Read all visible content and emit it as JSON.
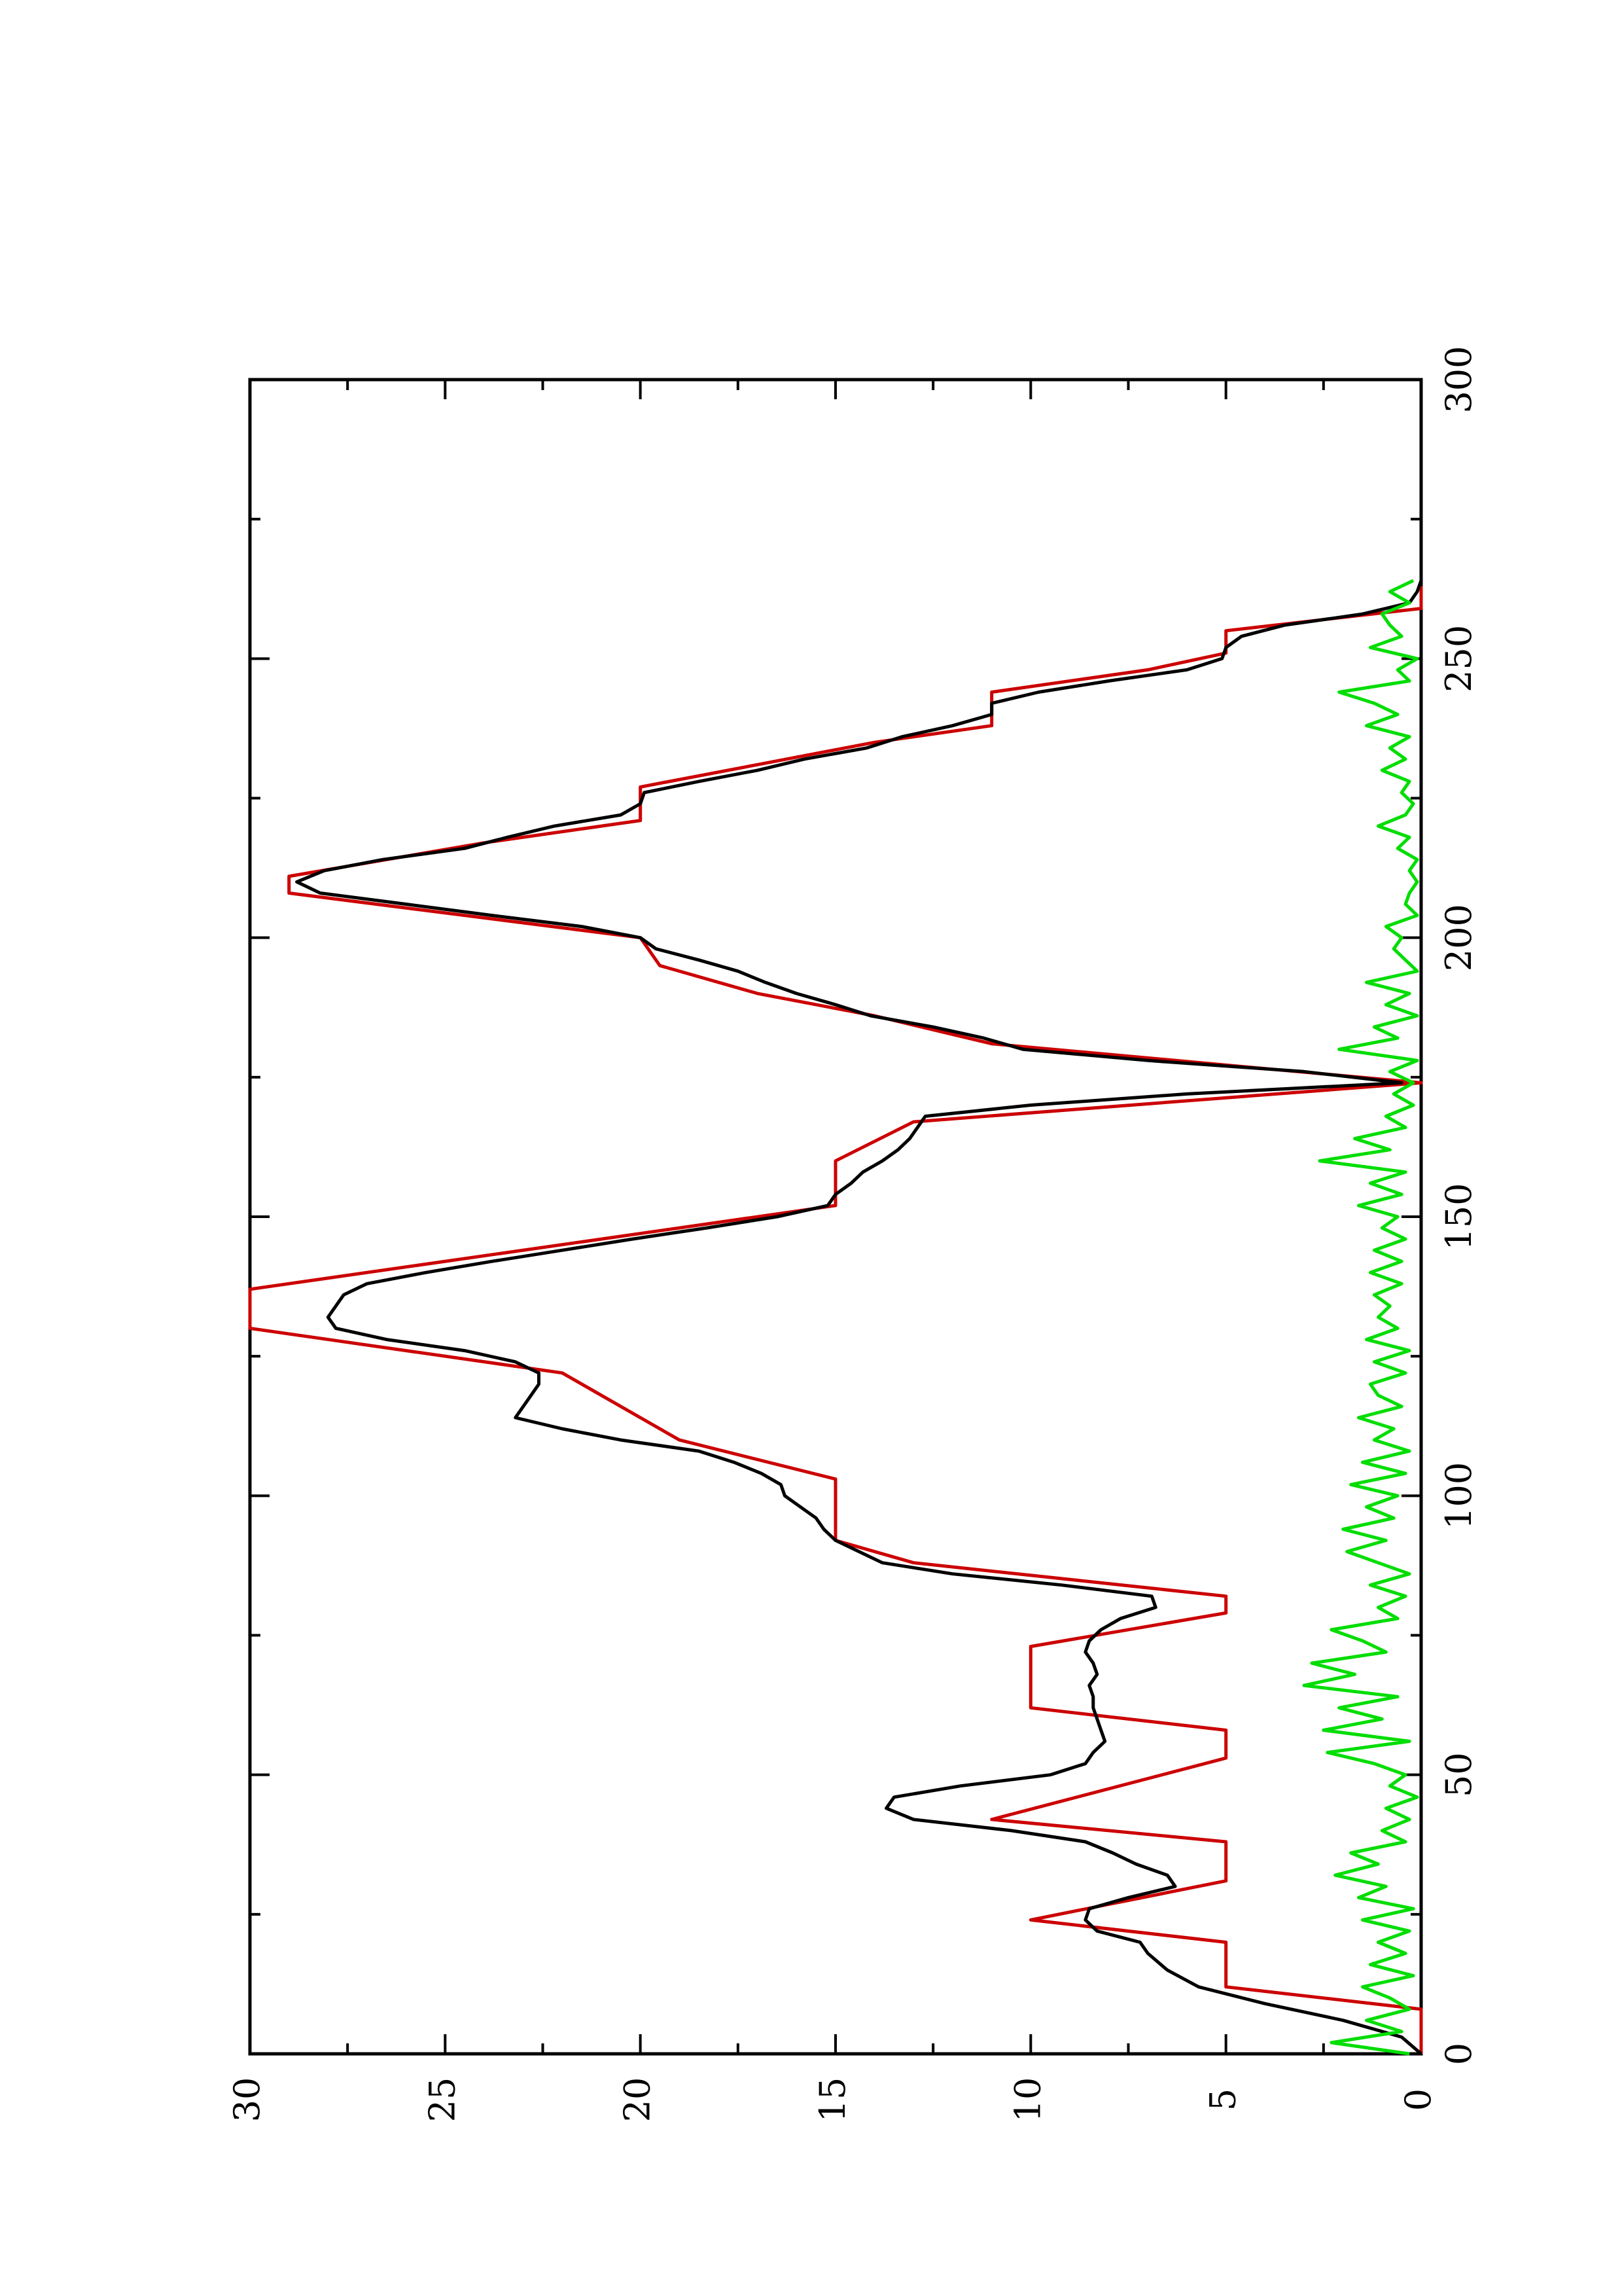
{
  "chart_data": {
    "type": "line",
    "orientation": "rotated-90-ccw",
    "title": "",
    "xlabel": "",
    "ylabel": "",
    "xlim": [
      0,
      300
    ],
    "ylim": [
      0,
      30
    ],
    "x_ticks": [
      0,
      50,
      100,
      150,
      200,
      250,
      300
    ],
    "y_ticks": [
      0,
      5,
      10,
      15,
      20,
      25,
      30
    ],
    "x_tick_labels": [
      "0",
      "50",
      "100",
      "150",
      "200",
      "250",
      "300"
    ],
    "y_tick_labels": [
      "0",
      "5",
      "10",
      "15",
      "20",
      "25",
      "30"
    ],
    "grid": false,
    "legend": "none",
    "series": [
      {
        "color": "#cc0000",
        "x": [
          0,
          8,
          12,
          20,
          24,
          31,
          38,
          42,
          53,
          58,
          62,
          73,
          79,
          82,
          88,
          92,
          103,
          110,
          122,
          130,
          136,
          137,
          148,
          152,
          160,
          167,
          174,
          181,
          186,
          190,
          195,
          200,
          208,
          211,
          217,
          221,
          227,
          231,
          235,
          238,
          244,
          248,
          251,
          255,
          259,
          263
        ],
        "y": [
          0,
          0,
          5,
          5,
          10,
          5,
          5,
          11,
          5,
          5,
          10,
          10,
          5,
          5,
          13,
          15,
          15,
          19,
          22,
          30,
          30,
          30,
          19,
          15,
          15,
          13,
          0,
          11,
          14,
          17,
          19.5,
          20,
          29,
          29,
          24,
          20,
          20,
          17,
          14,
          11,
          11,
          7,
          5,
          5,
          0,
          0
        ]
      },
      {
        "color": "#000000",
        "x": [
          0,
          3,
          6,
          9,
          12,
          15,
          18,
          20,
          22,
          24,
          26,
          28,
          30,
          32,
          34,
          36,
          38,
          40,
          42,
          44,
          46,
          48,
          50,
          52,
          54,
          56,
          58,
          60,
          62,
          64,
          66,
          68,
          70,
          72,
          74,
          76,
          78,
          80,
          82,
          84,
          86,
          88,
          90,
          92,
          94,
          96,
          98,
          100,
          102,
          104,
          106,
          108,
          110,
          112,
          114,
          116,
          118,
          120,
          122,
          124,
          126,
          128,
          130,
          132,
          134,
          136,
          138,
          140,
          142,
          144,
          146,
          148,
          150,
          152,
          154,
          156,
          158,
          160,
          162,
          164,
          166,
          168,
          170,
          172,
          174,
          176,
          178,
          180,
          182,
          184,
          186,
          188,
          190,
          192,
          194,
          196,
          198,
          200,
          202,
          204,
          206,
          208,
          210,
          212,
          214,
          216,
          218,
          220,
          222,
          224,
          226,
          228,
          230,
          232,
          234,
          236,
          238,
          240,
          242,
          244,
          246,
          248,
          250,
          252,
          254,
          256,
          258,
          260,
          262,
          264
        ],
        "y": [
          0,
          0.5,
          2,
          4,
          5.7,
          6.5,
          7.0,
          7.2,
          8.3,
          8.6,
          8.5,
          7.5,
          6.3,
          6.5,
          7.3,
          7.9,
          8.6,
          10.5,
          13.0,
          13.7,
          13.5,
          11.8,
          9.5,
          8.6,
          8.4,
          8.1,
          8.2,
          8.3,
          8.4,
          8.4,
          8.5,
          8.3,
          8.4,
          8.6,
          8.5,
          8.2,
          7.7,
          6.8,
          6.9,
          9.2,
          12.0,
          13.8,
          14.4,
          15.0,
          15.3,
          15.5,
          15.9,
          16.3,
          16.4,
          16.9,
          17.6,
          18.5,
          20.5,
          22.0,
          23.2,
          23.0,
          22.8,
          22.6,
          22.6,
          23.2,
          24.5,
          26.5,
          27.8,
          28.0,
          27.8,
          27.6,
          27.0,
          25.5,
          23.8,
          22.0,
          20.2,
          18.3,
          16.5,
          15.2,
          15.0,
          14.6,
          14.3,
          13.8,
          13.4,
          13.1,
          12.9,
          12.7,
          10.0,
          6.0,
          0.5,
          3.0,
          7.0,
          10.2,
          11.2,
          12.5,
          14.1,
          15.0,
          16.0,
          16.8,
          17.5,
          18.5,
          19.6,
          20.0,
          21.5,
          23.8,
          26.0,
          28.2,
          28.8,
          28.1,
          26.6,
          24.5,
          23.4,
          22.2,
          20.5,
          20.0,
          19.9,
          18.5,
          17.0,
          15.8,
          14.2,
          13.3,
          12.0,
          11.0,
          11.0,
          9.8,
          8.0,
          6.0,
          5.1,
          5.0,
          4.6,
          3.5,
          1.5,
          0.3,
          0.1,
          0.0
        ]
      },
      {
        "color": "#00dd00",
        "x": [
          0,
          2,
          4,
          6,
          8,
          10,
          12,
          14,
          16,
          18,
          20,
          22,
          24,
          26,
          28,
          30,
          32,
          34,
          36,
          38,
          40,
          42,
          44,
          46,
          48,
          50,
          52,
          54,
          56,
          58,
          60,
          62,
          64,
          66,
          68,
          70,
          72,
          74,
          76,
          78,
          80,
          82,
          84,
          86,
          88,
          90,
          92,
          94,
          96,
          98,
          100,
          102,
          104,
          106,
          108,
          110,
          112,
          114,
          116,
          118,
          120,
          122,
          124,
          126,
          128,
          130,
          132,
          134,
          136,
          138,
          140,
          142,
          144,
          146,
          148,
          150,
          152,
          154,
          156,
          158,
          160,
          162,
          164,
          166,
          168,
          170,
          172,
          174,
          176,
          178,
          180,
          182,
          184,
          186,
          188,
          190,
          192,
          194,
          196,
          198,
          200,
          202,
          204,
          206,
          208,
          210,
          212,
          214,
          216,
          218,
          220,
          222,
          224,
          226,
          228,
          230,
          232,
          234,
          236,
          238,
          240,
          242,
          244,
          246,
          248,
          250,
          252,
          254,
          256,
          258,
          260,
          262,
          264
        ],
        "y": [
          0.3,
          2.3,
          0.5,
          1.4,
          0.3,
          0.8,
          1.5,
          0.2,
          1.3,
          0.4,
          1.1,
          0.3,
          1.5,
          0.2,
          1.6,
          0.9,
          2.2,
          1.1,
          1.8,
          0.4,
          1.0,
          0.3,
          0.9,
          0.1,
          0.8,
          0.4,
          1.2,
          2.4,
          0.3,
          2.5,
          1.0,
          2.1,
          0.6,
          3.0,
          1.7,
          2.8,
          0.9,
          1.5,
          2.3,
          0.6,
          1.1,
          0.4,
          1.3,
          0.3,
          1.1,
          1.9,
          0.9,
          2.0,
          0.7,
          1.4,
          0.6,
          1.8,
          0.4,
          1.5,
          0.3,
          1.2,
          0.7,
          1.6,
          0.5,
          1.1,
          1.3,
          0.4,
          1.2,
          0.3,
          1.4,
          0.6,
          1.1,
          0.8,
          1.2,
          0.5,
          1.3,
          0.5,
          1.2,
          0.4,
          1.0,
          0.6,
          1.6,
          0.5,
          1.3,
          0.4,
          2.6,
          0.8,
          1.7,
          0.4,
          0.9,
          0.2,
          0.7,
          0.2,
          0.8,
          0.1,
          2.1,
          0.6,
          1.2,
          0.1,
          0.9,
          0.3,
          1.4,
          0.1,
          0.4,
          0.7,
          0.5,
          0.9,
          0.1,
          0.4,
          0.3,
          0.1,
          0.3,
          0.1,
          0.6,
          0.3,
          1.1,
          0.4,
          0.2,
          0.5,
          0.3,
          1.0,
          0.4,
          0.8,
          0.3,
          1.4,
          0.6,
          1.2,
          2.1,
          0.3,
          0.6,
          0.1,
          1.3,
          0.5,
          0.8,
          1.0,
          0.3,
          0.8,
          0.2
        ]
      }
    ]
  }
}
